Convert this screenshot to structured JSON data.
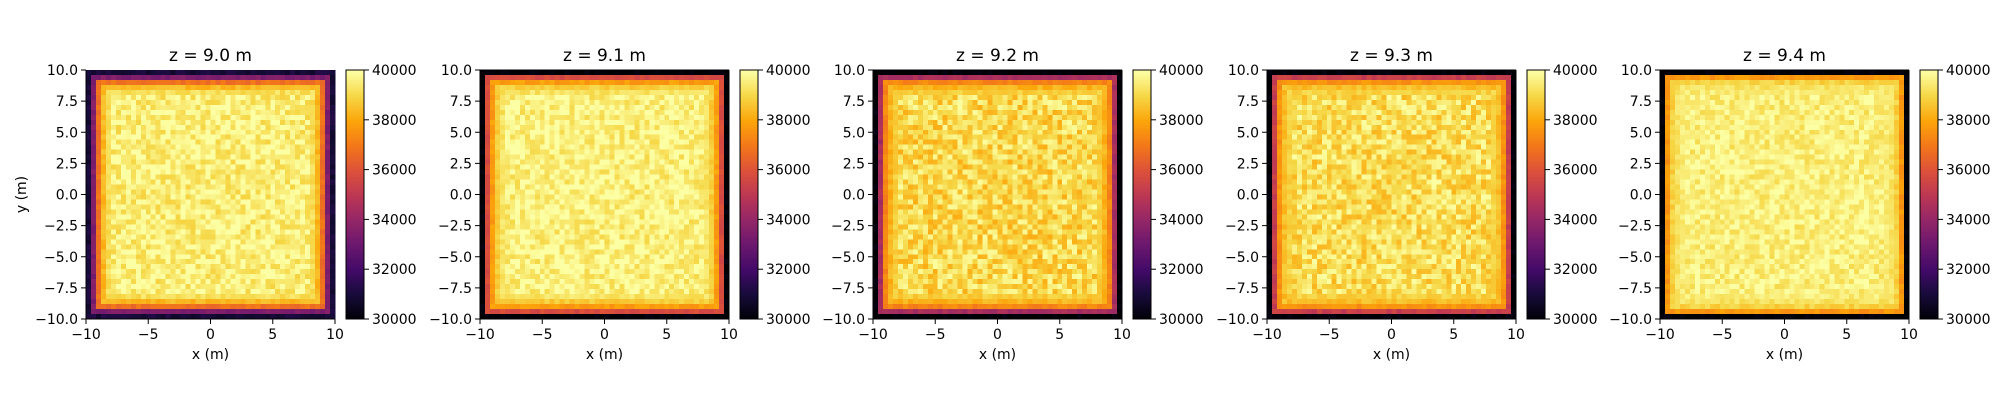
{
  "chart_data": [
    {
      "type": "heatmap",
      "title": "z = 9.0 m",
      "xlabel": "x (m)",
      "ylabel": "y (m)",
      "xlim": [
        -10,
        10
      ],
      "ylim": [
        -10,
        10
      ],
      "clim": [
        30000,
        40000
      ],
      "colormap": "inferno",
      "grid_size": 50,
      "edge_profile": [
        31000,
        33500,
        36800,
        38400,
        39200
      ],
      "interior_mean": 39600,
      "interior_jitter": 700,
      "axis_mode": "open-left",
      "xticks": [
        "−10",
        "−5",
        "0",
        "5",
        "10"
      ],
      "yticks": [
        "10.0",
        "7.5",
        "5.0",
        "2.5",
        "0.0",
        "−2.5",
        "−5.0",
        "−7.5",
        "−10.0"
      ],
      "cbar_ticks": [
        "40000",
        "38000",
        "36000",
        "34000",
        "32000",
        "30000"
      ]
    },
    {
      "type": "heatmap",
      "title": "z = 9.1 m",
      "xlabel": "x (m)",
      "ylabel": "",
      "xlim": [
        -10,
        10
      ],
      "ylim": [
        -10,
        10
      ],
      "clim": [
        30000,
        40000
      ],
      "colormap": "inferno",
      "grid_size": 50,
      "edge_profile": [
        30000,
        35800,
        37800,
        38800,
        39300
      ],
      "interior_mean": 39650,
      "interior_jitter": 650,
      "axis_mode": "boxed",
      "xticks": [
        "−10",
        "−5",
        "0",
        "5",
        "10"
      ],
      "yticks": [
        "10.0",
        "7.5",
        "5.0",
        "2.5",
        "0.0",
        "−2.5",
        "−5.0",
        "−7.5",
        "−10.0"
      ],
      "cbar_ticks": [
        "40000",
        "38000",
        "36000",
        "34000",
        "32000",
        "30000"
      ]
    },
    {
      "type": "heatmap",
      "title": "z = 9.2 m",
      "xlabel": "x (m)",
      "ylabel": "",
      "xlim": [
        -10,
        10
      ],
      "ylim": [
        -10,
        10
      ],
      "clim": [
        30000,
        40000
      ],
      "colormap": "inferno",
      "grid_size": 50,
      "edge_profile": [
        30000,
        34500,
        37300,
        38300,
        38800
      ],
      "interior_mean": 39050,
      "interior_jitter": 900,
      "axis_mode": "boxed",
      "xticks": [
        "−10",
        "−5",
        "0",
        "5",
        "10"
      ],
      "yticks": [
        "10.0",
        "7.5",
        "5.0",
        "2.5",
        "0.0",
        "−2.5",
        "−5.0",
        "−7.5",
        "−10.0"
      ],
      "cbar_ticks": [
        "40000",
        "38000",
        "36000",
        "34000",
        "32000",
        "30000"
      ]
    },
    {
      "type": "heatmap",
      "title": "z = 9.3 m",
      "xlabel": "x (m)",
      "ylabel": "",
      "xlim": [
        -10,
        10
      ],
      "ylim": [
        -10,
        10
      ],
      "clim": [
        30000,
        40000
      ],
      "colormap": "inferno",
      "grid_size": 50,
      "edge_profile": [
        30000,
        35300,
        37600,
        38500,
        38900
      ],
      "interior_mean": 39150,
      "interior_jitter": 850,
      "axis_mode": "boxed",
      "xticks": [
        "−10",
        "−5",
        "0",
        "5",
        "10"
      ],
      "yticks": [
        "10.0",
        "7.5",
        "5.0",
        "2.5",
        "0.0",
        "−2.5",
        "−5.0",
        "−7.5",
        "−10.0"
      ],
      "cbar_ticks": [
        "40000",
        "38000",
        "36000",
        "34000",
        "32000",
        "30000"
      ]
    },
    {
      "type": "heatmap",
      "title": "z = 9.4 m",
      "xlabel": "x (m)",
      "ylabel": "",
      "xlim": [
        -10,
        10
      ],
      "ylim": [
        -10,
        10
      ],
      "clim": [
        30000,
        40000
      ],
      "colormap": "inferno",
      "grid_size": 50,
      "edge_profile": [
        30000,
        37700,
        38900,
        39300,
        39500
      ],
      "interior_mean": 39600,
      "interior_jitter": 550,
      "axis_mode": "boxed",
      "xticks": [
        "−10",
        "−5",
        "0",
        "5",
        "10"
      ],
      "yticks": [
        "10.0",
        "7.5",
        "5.0",
        "2.5",
        "0.0",
        "−2.5",
        "−5.0",
        "−7.5",
        "−10.0"
      ],
      "cbar_ticks": [
        "40000",
        "38000",
        "36000",
        "34000",
        "32000",
        "30000"
      ]
    }
  ]
}
